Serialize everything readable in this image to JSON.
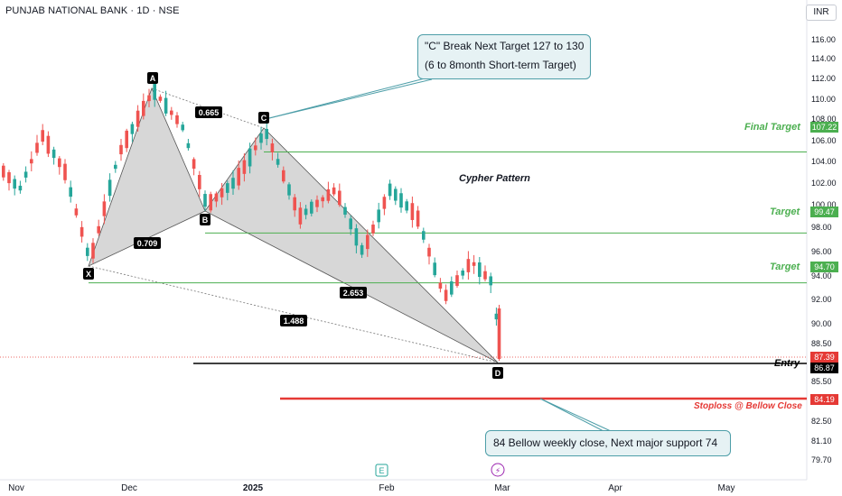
{
  "header": {
    "title": "PUNJAB NATIONAL BANK · 1D · NSE",
    "currency": "INR"
  },
  "chart_data": {
    "type": "candlestick",
    "y_ticks": [
      "116.00",
      "114.00",
      "112.00",
      "110.00",
      "108.00",
      "106.00",
      "104.00",
      "102.00",
      "100.00",
      "98.00",
      "96.00",
      "94.00",
      "92.00",
      "90.00",
      "88.50",
      "85.50",
      "82.50",
      "81.10",
      "79.70"
    ],
    "x_ticks": [
      "Nov",
      "Dec",
      "2025",
      "Feb",
      "Mar",
      "Apr",
      "May"
    ],
    "levels": [
      {
        "name": "Final Target",
        "value": 107.22,
        "tag": "107.22",
        "color": "#4caf50"
      },
      {
        "name": "Target",
        "value": 99.47,
        "tag": "99.47",
        "color": "#4caf50"
      },
      {
        "name": "Target",
        "value": 94.7,
        "tag": "94.70",
        "color": "#4caf50"
      },
      {
        "name": "Entry",
        "value": 86.87,
        "tag": "86.87",
        "color": "#000000"
      },
      {
        "name": "Stoploss @ Bellow Close",
        "value": 84.19,
        "tag": "84.19",
        "color": "#e53935"
      }
    ],
    "current_price": {
      "value": 87.39,
      "tag": "87.39",
      "color": "#e53935"
    },
    "pattern_points": [
      {
        "label": "X",
        "value": 94.8
      },
      {
        "label": "A",
        "value": 111.3
      },
      {
        "label": "B",
        "value": 99.7
      },
      {
        "label": "C",
        "value": 107.3
      },
      {
        "label": "D",
        "value": 86.9
      }
    ],
    "ratios": [
      "0.665",
      "0.709",
      "2.653",
      "1.488"
    ],
    "pattern_name": "Cypher Pattern",
    "colors": {
      "up": "#26a69a",
      "down": "#ef5350"
    }
  },
  "callouts": {
    "c_break_line1": "\"C\" Break Next Target 127 to 130",
    "c_break_line2": "(6 to 8month Short-term Target)",
    "support": "84 Bellow weekly close, Next major support 74"
  },
  "events": {
    "earnings_icon": "E",
    "dividend_icon": "⚡"
  }
}
